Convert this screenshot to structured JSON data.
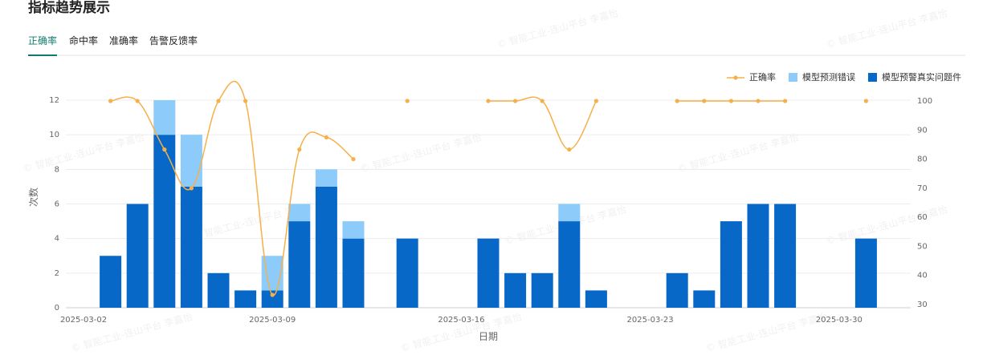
{
  "header": {
    "title": "指标趋势展示"
  },
  "tabs": [
    "正确率",
    "命中率",
    "准确率",
    "告警反馈率"
  ],
  "watermark": "© 智能工业-连山平台 李嘉怡",
  "chart_data": {
    "type": "bar",
    "xlabel": "日期",
    "ylabel": "次数",
    "categories": [
      "2025-03-02",
      null,
      null,
      null,
      null,
      null,
      null,
      "2025-03-09",
      null,
      null,
      null,
      null,
      null,
      null,
      "2025-03-16",
      null,
      null,
      null,
      null,
      null,
      null,
      "2025-03-23",
      null,
      null,
      null,
      null,
      null,
      null,
      "2025-03-30",
      null
    ],
    "series": [
      {
        "name": "正确率",
        "type": "line",
        "axis": "y2",
        "color": "#f5b04a",
        "values": [
          null,
          100,
          100,
          83.3,
          70,
          100,
          100,
          33.3,
          83.3,
          87.5,
          80,
          null,
          100,
          null,
          null,
          100,
          100,
          100,
          83.3,
          100,
          null,
          null,
          100,
          100,
          100,
          100,
          100,
          null,
          null,
          100
        ]
      },
      {
        "name": "模型预测错误",
        "type": "bar",
        "stack": "top",
        "color": "#8ccbfa",
        "values": [
          0,
          0,
          0,
          2,
          3,
          0,
          0,
          2,
          1,
          1,
          1,
          0,
          0,
          0,
          0,
          0,
          0,
          0,
          1,
          0,
          0,
          0,
          0,
          0,
          0,
          0,
          0,
          0,
          0,
          0
        ]
      },
      {
        "name": "模型预警真实问题件",
        "type": "bar",
        "stack": "bottom",
        "color": "#0868c8",
        "values": [
          0,
          3,
          6,
          10,
          7,
          2,
          1,
          1,
          5,
          7,
          4,
          0,
          4,
          0,
          0,
          4,
          2,
          2,
          5,
          1,
          0,
          0,
          2,
          1,
          5,
          6,
          6,
          0,
          0,
          4
        ]
      }
    ],
    "ylim": [
      0,
      12
    ],
    "yticks": [
      0,
      2,
      4,
      6,
      8,
      10,
      12
    ],
    "y2lim": [
      30,
      100
    ],
    "y2ticks": [
      30,
      40,
      50,
      60,
      70,
      80,
      90,
      100
    ],
    "grid": true,
    "legend": "top-right"
  }
}
